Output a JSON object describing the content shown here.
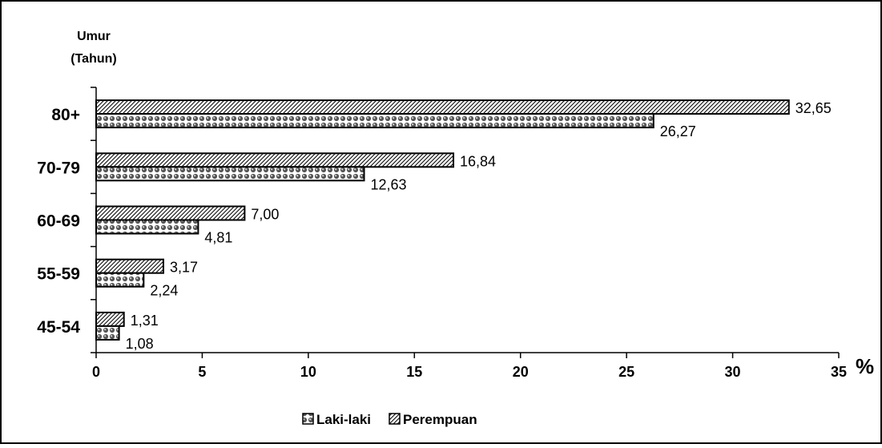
{
  "chart_data": {
    "type": "bar",
    "orientation": "horizontal",
    "ylabel_line1": "Umur",
    "ylabel_line2": "(Tahun)",
    "x_unit": "%",
    "categories": [
      "45-54",
      "55-59",
      "60-69",
      "70-79",
      "80+"
    ],
    "series": [
      {
        "name": "Laki-laki",
        "values": [
          1.08,
          2.24,
          4.81,
          12.63,
          26.27
        ],
        "value_labels": [
          "1,08",
          "2,24",
          "4,81",
          "12,63",
          "26,27"
        ],
        "pattern": "dots"
      },
      {
        "name": "Perempuan",
        "values": [
          1.31,
          3.17,
          7.0,
          16.84,
          32.65
        ],
        "value_labels": [
          "1,31",
          "3,17",
          "7,00",
          "16,84",
          "32,65"
        ],
        "pattern": "diagonal-hatch"
      }
    ],
    "xlim": [
      0,
      35
    ],
    "xticks": [
      0,
      5,
      10,
      15,
      20,
      25,
      30,
      35
    ],
    "grid": false,
    "legend_position": "bottom"
  }
}
